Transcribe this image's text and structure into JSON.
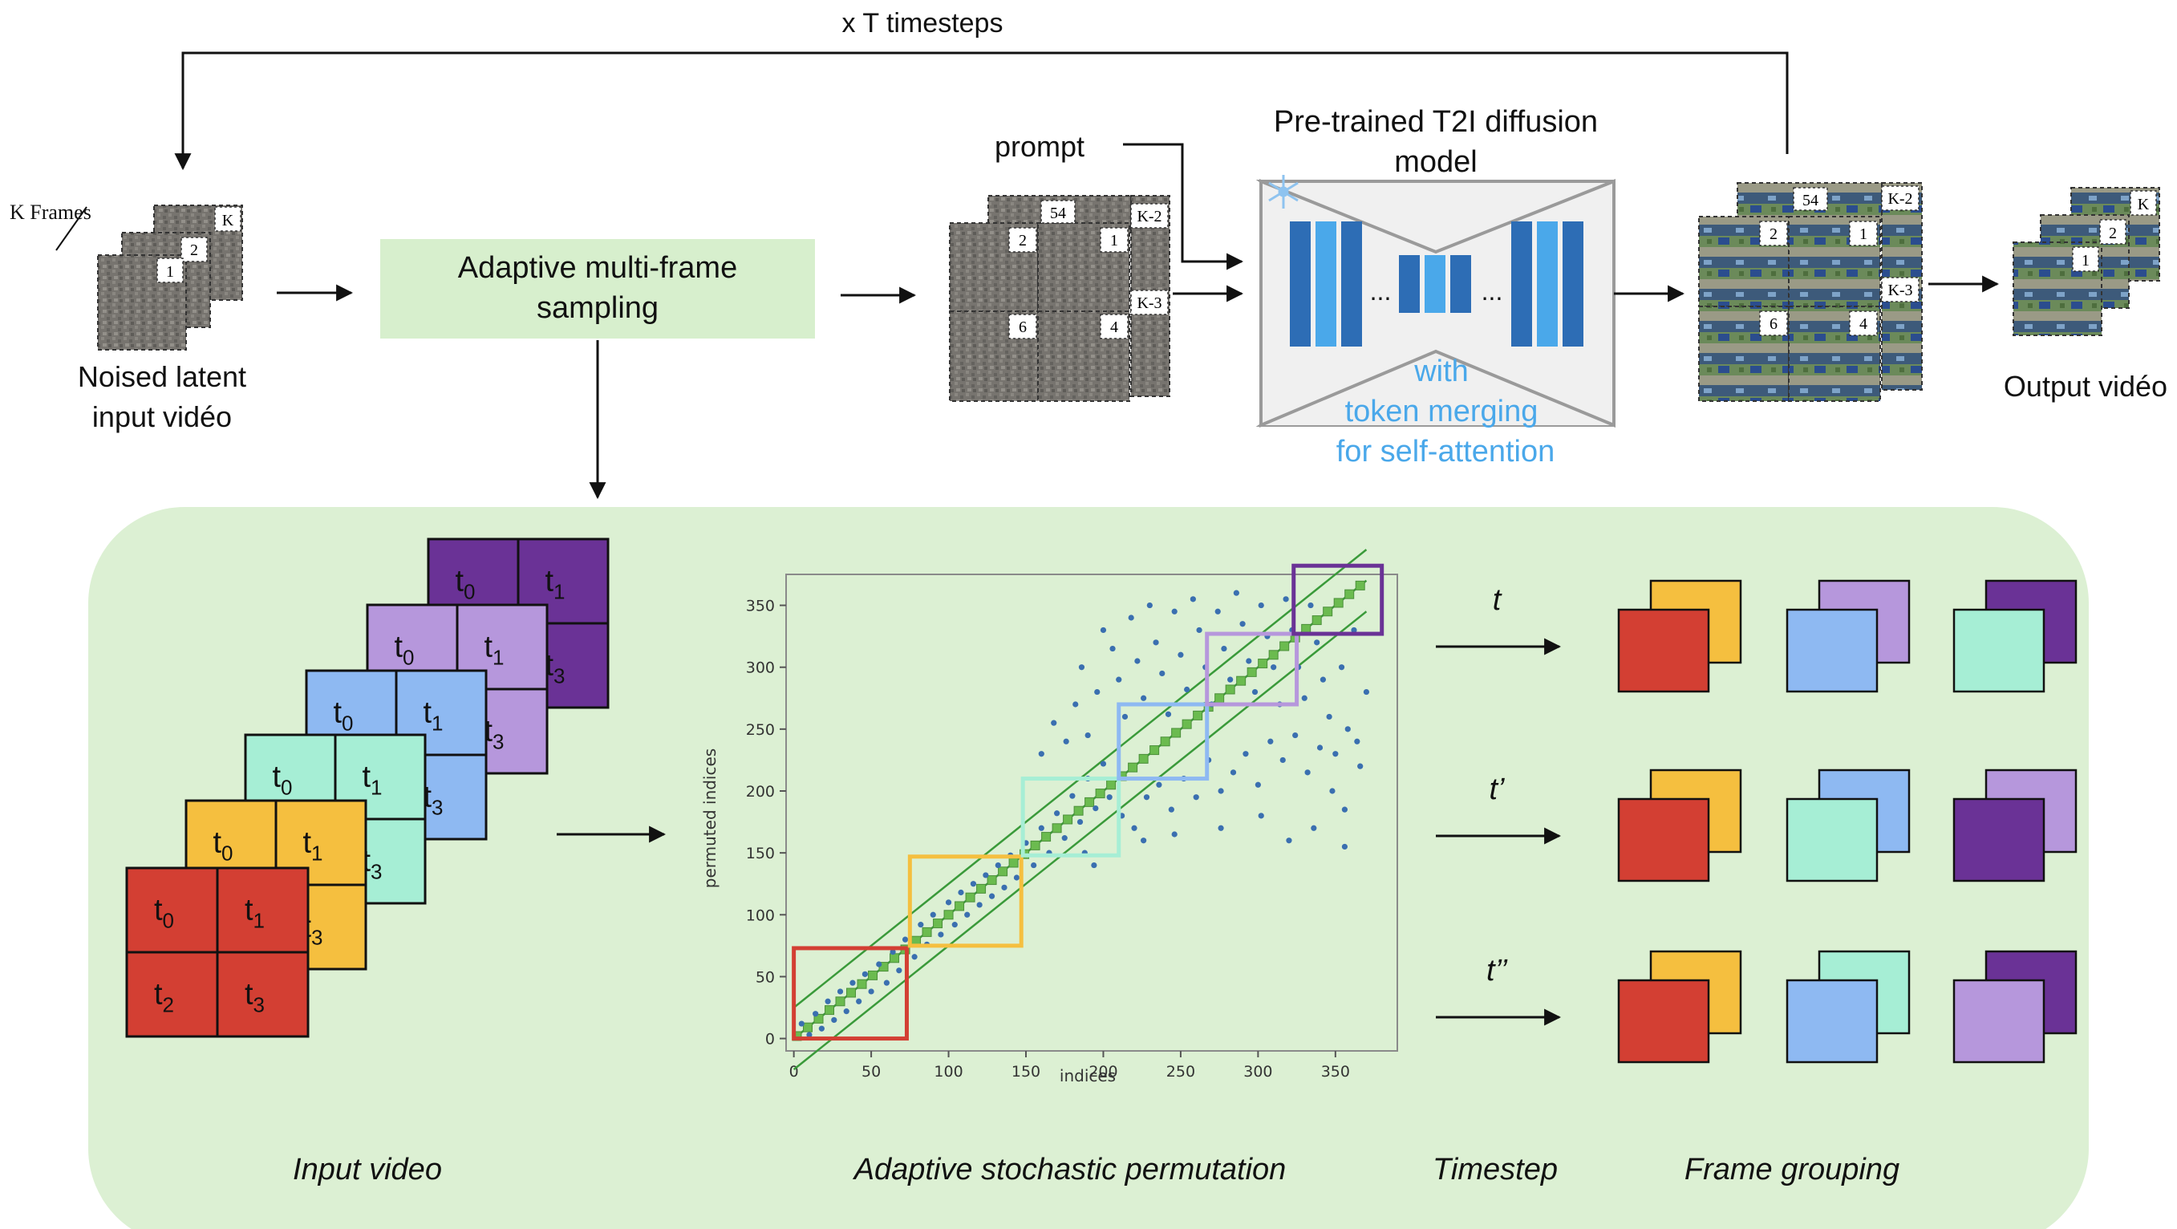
{
  "top": {
    "loop_label": "x T timesteps",
    "k_frames_label": "K Frames",
    "noised_input_label_line1": "Noised latent",
    "noised_input_label_line2": "input vidéo",
    "sampling_box_line1": "Adaptive multi-frame",
    "sampling_box_line2": "sampling",
    "prompt_label": "prompt",
    "model_title_line1": "Pre-trained T2I diffusion",
    "model_title_line2": "model",
    "model_note_line1": "with",
    "model_note_line2": "token merging",
    "model_note_line3": "for self-attention",
    "ellipsis": "...",
    "output_label": "Output vidéo",
    "frame_badges": {
      "k": "K",
      "two": "2",
      "one": "1",
      "fifty_four": "54",
      "k_minus_2": "K-2",
      "k_minus_3": "K-3",
      "six": "6",
      "four": "4"
    }
  },
  "bottom": {
    "caption_input": "Input video",
    "caption_permutation": "Adaptive stochastic permutation",
    "caption_timestep": "Timestep",
    "caption_grouping": "Frame grouping",
    "timesteps": [
      "t",
      "t’",
      "t’’"
    ],
    "tile_labels": {
      "t0": {
        "base": "t",
        "sub": "0"
      },
      "t1": {
        "base": "t",
        "sub": "1"
      },
      "t2": {
        "base": "t",
        "sub": "2"
      },
      "t3": {
        "base": "t",
        "sub": "3"
      }
    }
  },
  "colors": {
    "red": "#d33f33",
    "yellow": "#f5bf3f",
    "teal": "#a6eed5",
    "blue": "#8eb9f2",
    "lilac": "#b697dc",
    "purple": "#6a3296",
    "panel_bg": "#dcf0d3",
    "sampling_box": "#d7efcd",
    "model_blue_dark": "#2d6db5",
    "model_blue_light": "#4aa8ea",
    "scatter_point": "#3a6fb0",
    "band_green": "#3a9a3a",
    "band_square": "#6bbb4f"
  },
  "chart_data": {
    "type": "scatter",
    "xlabel": "indices",
    "ylabel": "permuted indices",
    "xlim": [
      -5,
      390
    ],
    "ylim": [
      -10,
      375
    ],
    "xticks": [
      0,
      50,
      100,
      150,
      200,
      250,
      300,
      350
    ],
    "yticks": [
      0,
      50,
      100,
      150,
      200,
      250,
      300,
      350
    ],
    "band": {
      "center_line": "y = x",
      "lower_line": "y = x - 25",
      "upper_line": "y = x + 25"
    },
    "group_windows": [
      {
        "color": "red",
        "x": [
          0,
          73
        ],
        "y": [
          0,
          73
        ]
      },
      {
        "color": "yellow",
        "x": [
          75,
          147
        ],
        "y": [
          75,
          147
        ]
      },
      {
        "color": "teal",
        "x": [
          148,
          210
        ],
        "y": [
          148,
          210
        ]
      },
      {
        "color": "blue",
        "x": [
          210,
          267
        ],
        "y": [
          210,
          270
        ]
      },
      {
        "color": "lilac",
        "x": [
          267,
          325
        ],
        "y": [
          270,
          327
        ]
      },
      {
        "color": "purple",
        "x": [
          323,
          380
        ],
        "y": [
          327,
          382
        ]
      }
    ],
    "points_on_band": "approximately every index 0-370 with y close to x (squares along the diagonal)",
    "scattered_points": [
      [
        5,
        12
      ],
      [
        10,
        3
      ],
      [
        14,
        20
      ],
      [
        18,
        8
      ],
      [
        22,
        30
      ],
      [
        26,
        15
      ],
      [
        30,
        38
      ],
      [
        34,
        22
      ],
      [
        38,
        45
      ],
      [
        42,
        30
      ],
      [
        46,
        52
      ],
      [
        50,
        38
      ],
      [
        55,
        60
      ],
      [
        60,
        45
      ],
      [
        64,
        70
      ],
      [
        68,
        55
      ],
      [
        72,
        80
      ],
      [
        78,
        66
      ],
      [
        82,
        92
      ],
      [
        86,
        76
      ],
      [
        90,
        100
      ],
      [
        95,
        84
      ],
      [
        100,
        110
      ],
      [
        104,
        92
      ],
      [
        108,
        118
      ],
      [
        112,
        100
      ],
      [
        116,
        125
      ],
      [
        120,
        108
      ],
      [
        124,
        132
      ],
      [
        128,
        115
      ],
      [
        132,
        140
      ],
      [
        136,
        122
      ],
      [
        140,
        148
      ],
      [
        144,
        130
      ],
      [
        150,
        158
      ],
      [
        155,
        140
      ],
      [
        160,
        170
      ],
      [
        165,
        150
      ],
      [
        170,
        182
      ],
      [
        175,
        162
      ],
      [
        180,
        196
      ],
      [
        185,
        175
      ],
      [
        190,
        210
      ],
      [
        195,
        186
      ],
      [
        200,
        222
      ],
      [
        204,
        195
      ],
      [
        160,
        230
      ],
      [
        168,
        255
      ],
      [
        176,
        240
      ],
      [
        182,
        270
      ],
      [
        186,
        300
      ],
      [
        190,
        245
      ],
      [
        196,
        280
      ],
      [
        200,
        330
      ],
      [
        206,
        315
      ],
      [
        210,
        290
      ],
      [
        214,
        260
      ],
      [
        218,
        340
      ],
      [
        222,
        305
      ],
      [
        226,
        275
      ],
      [
        230,
        350
      ],
      [
        234,
        320
      ],
      [
        238,
        295
      ],
      [
        242,
        262
      ],
      [
        246,
        345
      ],
      [
        250,
        310
      ],
      [
        254,
        282
      ],
      [
        258,
        355
      ],
      [
        262,
        330
      ],
      [
        266,
        300
      ],
      [
        270,
        270
      ],
      [
        274,
        345
      ],
      [
        278,
        315
      ],
      [
        282,
        290
      ],
      [
        286,
        360
      ],
      [
        290,
        335
      ],
      [
        294,
        305
      ],
      [
        298,
        280
      ],
      [
        302,
        350
      ],
      [
        306,
        325
      ],
      [
        310,
        300
      ],
      [
        314,
        270
      ],
      [
        318,
        355
      ],
      [
        322,
        330
      ],
      [
        326,
        300
      ],
      [
        330,
        275
      ],
      [
        334,
        350
      ],
      [
        338,
        320
      ],
      [
        342,
        290
      ],
      [
        346,
        260
      ],
      [
        350,
        230
      ],
      [
        354,
        300
      ],
      [
        358,
        250
      ],
      [
        362,
        330
      ],
      [
        366,
        220
      ],
      [
        370,
        280
      ],
      [
        212,
        180
      ],
      [
        220,
        170
      ],
      [
        228,
        195
      ],
      [
        236,
        205
      ],
      [
        244,
        185
      ],
      [
        252,
        210
      ],
      [
        260,
        195
      ],
      [
        268,
        225
      ],
      [
        276,
        200
      ],
      [
        284,
        215
      ],
      [
        292,
        230
      ],
      [
        300,
        205
      ],
      [
        308,
        240
      ],
      [
        316,
        225
      ],
      [
        324,
        245
      ],
      [
        332,
        215
      ],
      [
        340,
        235
      ],
      [
        348,
        200
      ],
      [
        356,
        185
      ],
      [
        364,
        240
      ],
      [
        188,
        150
      ],
      [
        194,
        140
      ],
      [
        226,
        160
      ],
      [
        246,
        165
      ],
      [
        276,
        170
      ],
      [
        302,
        180
      ],
      [
        320,
        160
      ],
      [
        336,
        170
      ],
      [
        356,
        155
      ]
    ]
  }
}
